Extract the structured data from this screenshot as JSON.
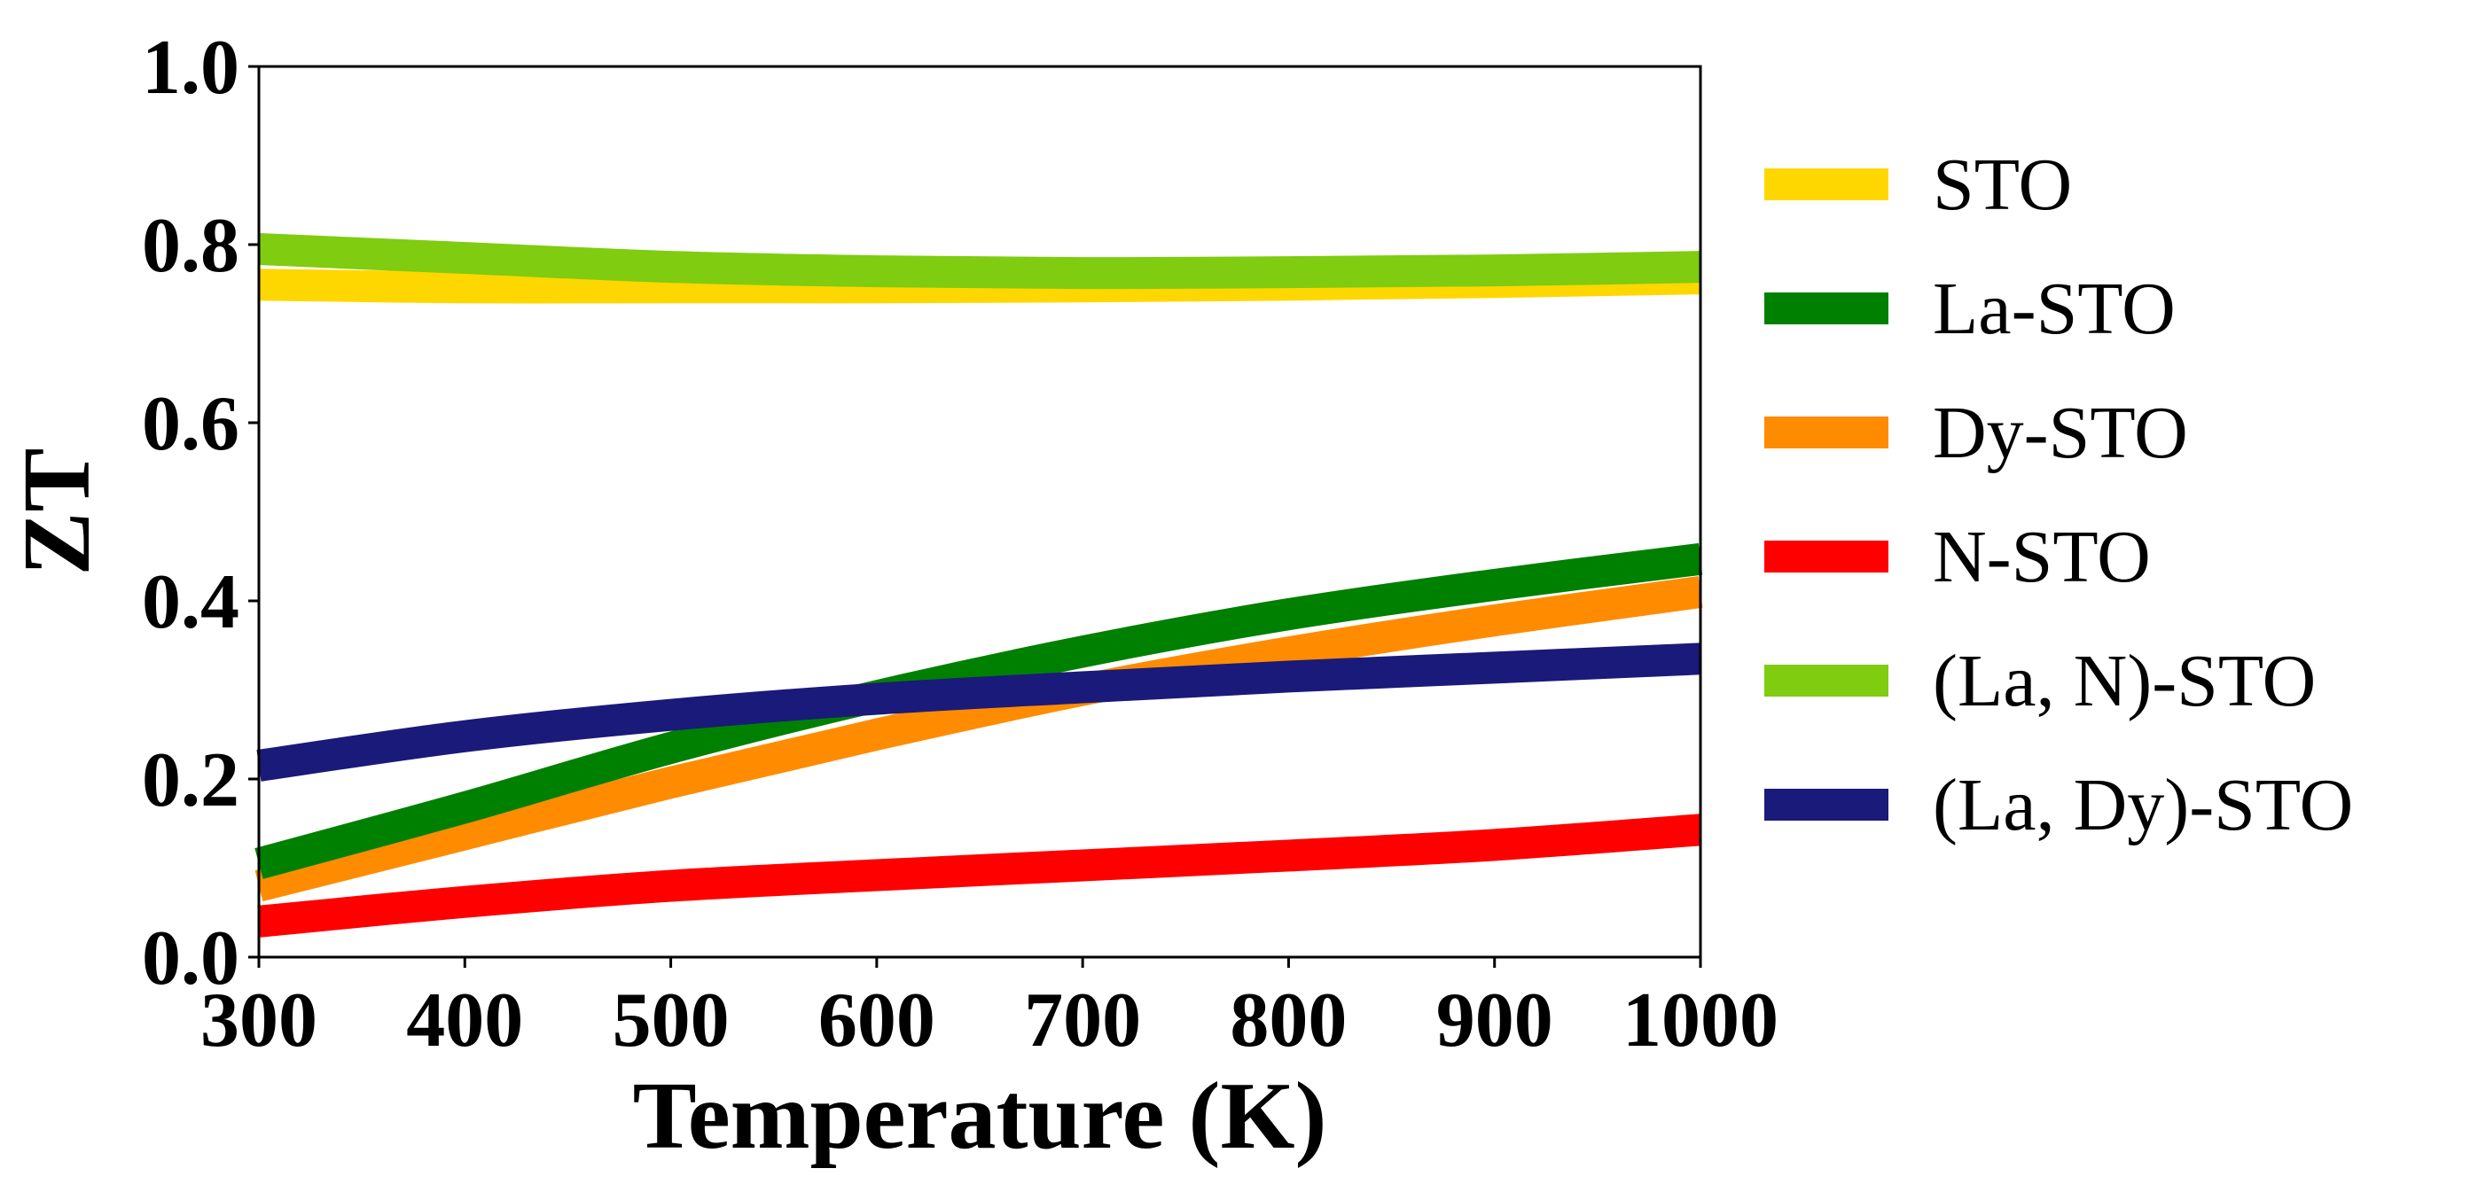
{
  "chart_data": {
    "type": "line",
    "title": "",
    "xlabel": "Temperature (K)",
    "ylabel": "ZT",
    "xlim": [
      300,
      1000
    ],
    "ylim": [
      0.0,
      1.0
    ],
    "xticks": [
      300,
      400,
      500,
      600,
      700,
      800,
      900,
      1000
    ],
    "xtick_labels": [
      "300",
      "400",
      "500",
      "600",
      "700",
      "800",
      "900",
      "1000"
    ],
    "yticks": [
      0.0,
      0.2,
      0.4,
      0.6,
      0.8,
      1.0
    ],
    "ytick_labels": [
      "0.0",
      "0.2",
      "0.4",
      "0.6",
      "0.8",
      "1.0"
    ],
    "grid": false,
    "legend_position": "right-outside",
    "x": [
      300,
      400,
      500,
      600,
      700,
      800,
      900,
      1000
    ],
    "series": [
      {
        "name": "STO",
        "color": "#FFD700",
        "values": [
          0.755,
          0.752,
          0.752,
          0.752,
          0.753,
          0.755,
          0.758,
          0.762
        ]
      },
      {
        "name": "La-STO",
        "color": "#008000",
        "values": [
          0.105,
          0.168,
          0.235,
          0.293,
          0.343,
          0.385,
          0.418,
          0.447
        ]
      },
      {
        "name": "Dy-STO",
        "color": "#FF8C00",
        "values": [
          0.08,
          0.138,
          0.196,
          0.25,
          0.3,
          0.342,
          0.378,
          0.41
        ]
      },
      {
        "name": "N-STO",
        "color": "#FF0000",
        "values": [
          0.04,
          0.062,
          0.08,
          0.092,
          0.103,
          0.114,
          0.126,
          0.143
        ]
      },
      {
        "name": "(La, N)-STO",
        "color": "#7FCC10",
        "values": [
          0.795,
          0.785,
          0.775,
          0.77,
          0.768,
          0.769,
          0.771,
          0.775
        ]
      },
      {
        "name": "(La, Dy)-STO",
        "color": "#1A1A7A",
        "values": [
          0.215,
          0.248,
          0.272,
          0.29,
          0.303,
          0.315,
          0.325,
          0.335
        ]
      }
    ]
  }
}
